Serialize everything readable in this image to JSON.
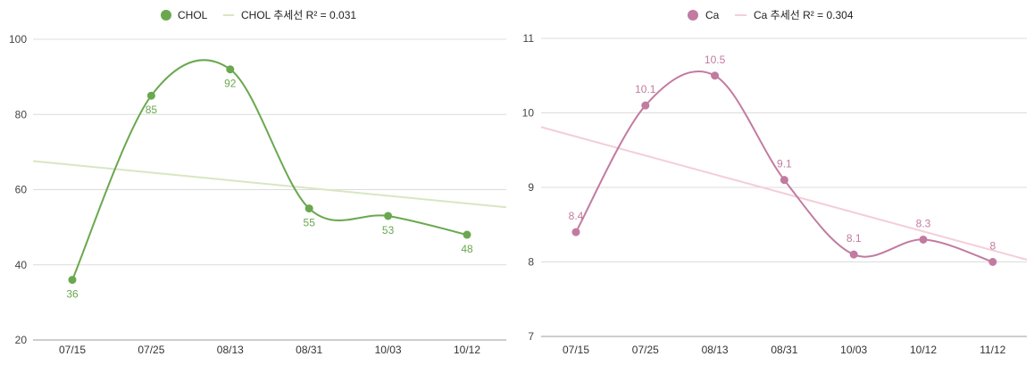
{
  "chart_data": [
    {
      "type": "line",
      "categories": [
        "07/15",
        "07/25",
        "08/13",
        "08/31",
        "10/03",
        "10/12"
      ],
      "series": [
        {
          "name": "CHOL",
          "values": [
            36,
            85,
            92,
            55,
            53,
            48
          ],
          "color": "#6aa84f"
        }
      ],
      "trendline": {
        "name": "CHOL 추세선 R² = 0.031",
        "color": "#d9e6c3",
        "start": 67.6,
        "end": 55.3
      },
      "y_ticks": [
        20,
        40,
        60,
        80,
        100
      ],
      "ylim": [
        20,
        100
      ],
      "data_labels": [
        "36",
        "85",
        "92",
        "55",
        "53",
        "48"
      ],
      "label_position": "below",
      "legend_position": "top",
      "grid": true
    },
    {
      "type": "line",
      "categories": [
        "07/15",
        "07/25",
        "08/13",
        "08/31",
        "10/03",
        "10/12",
        "11/12"
      ],
      "series": [
        {
          "name": "Ca",
          "values": [
            8.4,
            10.1,
            10.5,
            9.1,
            8.1,
            8.3,
            8.0
          ],
          "color": "#c27ba0"
        }
      ],
      "trendline": {
        "name": "Ca 추세선 R² = 0.304",
        "color": "#f4cdd8",
        "start": 9.81,
        "end": 8.03
      },
      "y_ticks": [
        7,
        8,
        9,
        10,
        11
      ],
      "ylim": [
        7,
        11
      ],
      "data_labels": [
        "8.4",
        "10.1",
        "10.5",
        "9.1",
        "8.1",
        "8.3",
        "8"
      ],
      "label_position": "above",
      "legend_position": "top",
      "grid": true
    }
  ]
}
